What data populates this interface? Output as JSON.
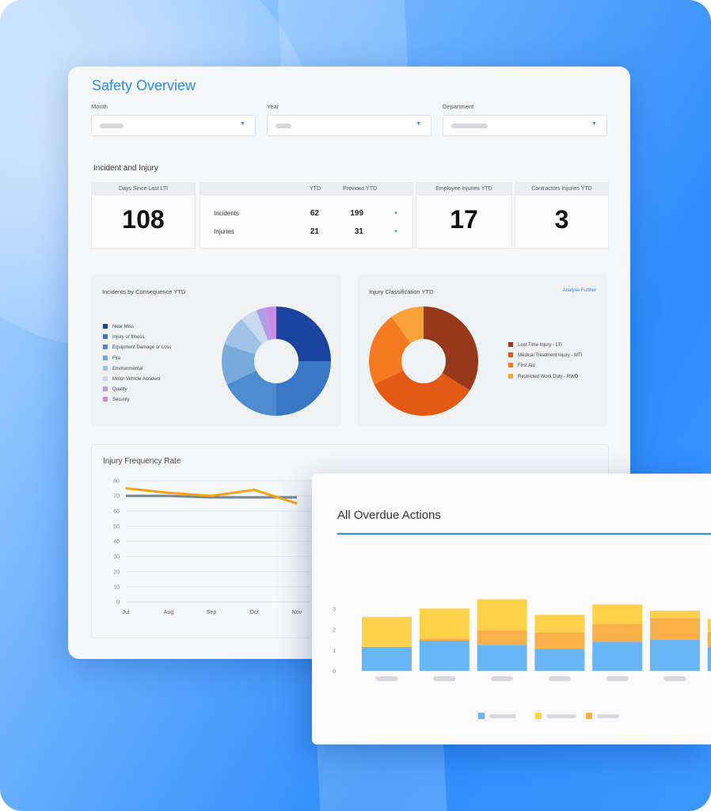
{
  "page": {
    "title": "Safety Overview"
  },
  "filters": [
    {
      "label": "Month",
      "value": ""
    },
    {
      "label": "Year",
      "value": ""
    },
    {
      "label": "Department",
      "value": ""
    }
  ],
  "incident_section": {
    "title": "Incident and Injury",
    "days_since_lti": {
      "label": "Days Since Last LTI",
      "value": "108"
    },
    "table": {
      "col_ytd": "YTD",
      "col_prev": "Previous YTD",
      "rows": [
        {
          "label": "Incidents",
          "ytd": "62",
          "prev": "199"
        },
        {
          "label": "Injuries",
          "ytd": "21",
          "prev": "31"
        }
      ]
    },
    "employee_injuries": {
      "label": "Employee Injuries YTD",
      "value": "17"
    },
    "contractor_injuries": {
      "label": "Contractors Injuries YTD",
      "value": "3"
    }
  },
  "consequence_chart": {
    "title": "Incidents by Consequence YTD"
  },
  "classification_chart": {
    "title": "Injury Classification YTD",
    "link": "Analyse Further"
  },
  "frequency_chart": {
    "title": "Injury Frequency Rate"
  },
  "overdue_chart": {
    "title": "All Overdue Actions"
  },
  "chart_data": [
    {
      "type": "pie",
      "title": "Incidents by Consequence YTD",
      "donut": true,
      "legend_position": "left",
      "labels": [
        "Near Miss",
        "Injury or Illness",
        "Equipment Damage or Loss",
        "Fire",
        "Environmental",
        "Motor Vehicle Accident",
        "Quality",
        "Security"
      ],
      "values": [
        25,
        25,
        18,
        12,
        9,
        5,
        3,
        3
      ],
      "colors": [
        "#1a44a0",
        "#3a77c6",
        "#4f8ccf",
        "#77a9db",
        "#9fc2e6",
        "#c9d9f0",
        "#b39be8",
        "#c98ce6"
      ]
    },
    {
      "type": "pie",
      "title": "Injury Classification YTD",
      "donut": true,
      "legend_position": "right",
      "labels": [
        "Lost Time Injury - LTI",
        "Medical Treatment Injury - MTI",
        "First Aid",
        "Restricted Work Duty - RWD"
      ],
      "values": [
        34,
        34,
        22,
        10
      ],
      "colors": [
        "#98381a",
        "#e35a17",
        "#f57a21",
        "#f9a23a"
      ]
    },
    {
      "type": "line",
      "title": "Injury Frequency Rate",
      "categories": [
        "Jul",
        "Aug",
        "Sep",
        "Oct",
        "Nov"
      ],
      "ylim": [
        0,
        80
      ],
      "yticks": [
        "80",
        "70",
        "60",
        "50",
        "40",
        "30",
        "20",
        "10",
        "0"
      ],
      "grid": true,
      "series": [
        {
          "values": [
            70,
            70,
            69,
            69,
            69
          ],
          "color": "#758895"
        },
        {
          "values": [
            75,
            72,
            70,
            74,
            65
          ],
          "color": "#f5a315"
        }
      ]
    },
    {
      "type": "bar",
      "stacked": true,
      "title": "All Overdue Actions",
      "yticks": [
        "3",
        "2",
        "1",
        "0"
      ],
      "ylim": [
        0,
        3.3
      ],
      "series": [
        {
          "values": [
            1.15,
            1.45,
            1.25,
            1.05,
            1.4,
            1.5,
            1.15
          ],
          "color": "#6ab5f5"
        },
        {
          "values": [
            0,
            0.1,
            0.7,
            0.8,
            0.85,
            1.05,
            0.7
          ],
          "color": "#f9b048"
        },
        {
          "values": [
            1.45,
            1.45,
            1.5,
            0.85,
            0.95,
            0.35,
            0.65
          ],
          "color": "#fdd24a"
        }
      ]
    }
  ]
}
